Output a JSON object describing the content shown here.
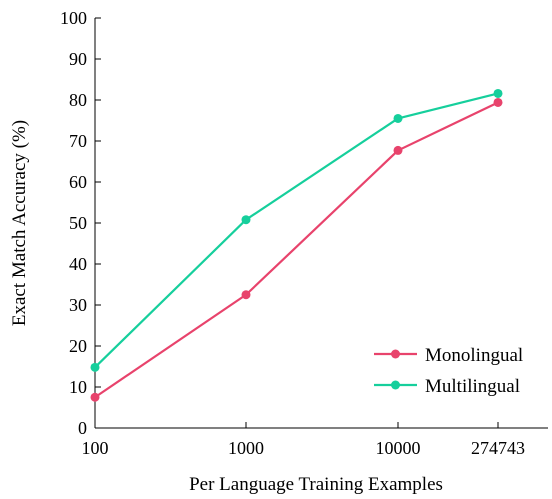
{
  "chart_data": {
    "type": "line",
    "title": "",
    "xlabel": "Per Language Training Examples",
    "ylabel": "Exact Match Accuracy (%)",
    "categories": [
      "100",
      "1000",
      "10000",
      "274743"
    ],
    "ylim": [
      0,
      100
    ],
    "yticks": [
      "0",
      "10",
      "20",
      "30",
      "40",
      "50",
      "60",
      "70",
      "80",
      "90",
      "100"
    ],
    "grid": false,
    "legend_position": "bottom-right",
    "series": [
      {
        "name": "Monolingual",
        "color": "#e8436c",
        "values": [
          7.5,
          32.5,
          67.7,
          79.4
        ]
      },
      {
        "name": "Multilingual",
        "color": "#16cf9c",
        "values": [
          14.8,
          50.8,
          75.5,
          81.6
        ]
      }
    ]
  }
}
